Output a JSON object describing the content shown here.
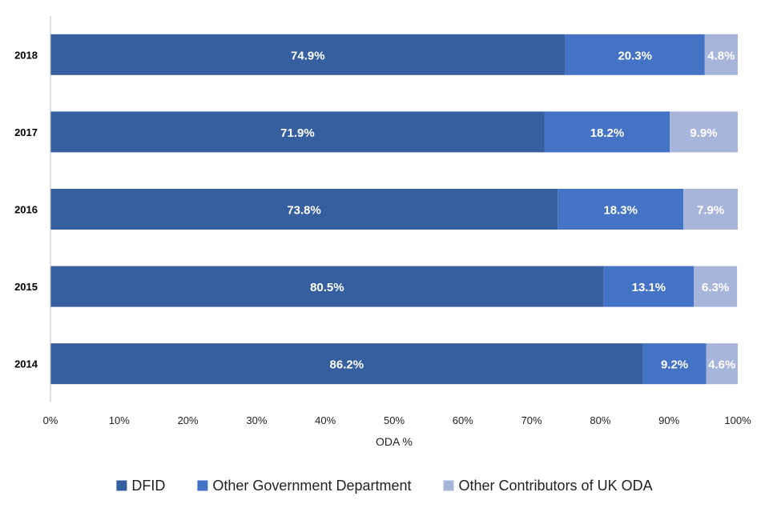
{
  "chart_data": {
    "type": "bar",
    "orientation": "horizontal",
    "stacked": true,
    "categories": [
      "2018",
      "2017",
      "2016",
      "2015",
      "2014"
    ],
    "series": [
      {
        "name": "DFID",
        "values": [
          74.9,
          71.9,
          73.8,
          80.5,
          86.2
        ],
        "labels": [
          "74.9%",
          "71.9%",
          "73.8%",
          "80.5%",
          "86.2%"
        ],
        "color": "#365F9F"
      },
      {
        "name": "Other Government Department",
        "values": [
          20.3,
          18.2,
          18.3,
          13.1,
          9.2
        ],
        "labels": [
          "20.3%",
          "18.2%",
          "18.3%",
          "13.1%",
          "9.2%"
        ],
        "color": "#4472C4"
      },
      {
        "name": "Other Contributors of UK ODA",
        "values": [
          4.8,
          9.9,
          7.9,
          6.3,
          4.6
        ],
        "labels": [
          "4.8%",
          "9.9%",
          "7.9%",
          "6.3%",
          "4.6%"
        ],
        "color": "#A7B5DB"
      }
    ],
    "xlabel": "ODA %",
    "ylabel": "",
    "xlim": [
      0,
      100
    ],
    "xticks": [
      "0%",
      "10%",
      "20%",
      "30%",
      "40%",
      "50%",
      "60%",
      "70%",
      "80%",
      "90%",
      "100%"
    ],
    "grid": false,
    "legend_position": "bottom"
  }
}
